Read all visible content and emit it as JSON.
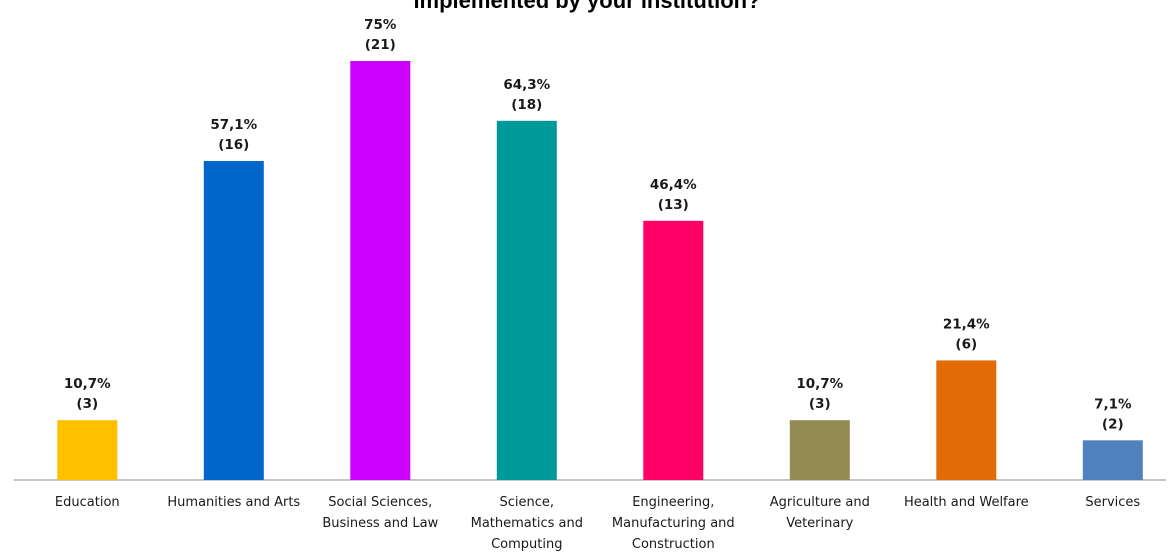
{
  "chart_data": {
    "type": "bar",
    "title": "implemented by your institution?",
    "xlabel": "",
    "ylabel": "",
    "ylim": [
      0,
      75
    ],
    "grid": false,
    "legend": "none",
    "categories": [
      "Education",
      "Humanities and Arts",
      "Social Sciences, Business and Law",
      "Science, Mathematics and Computing",
      "Engineering, Manufacturing and Construction",
      "Agriculture and Veterinary",
      "Health and Welfare",
      "Services"
    ],
    "category_lines": [
      [
        "Education"
      ],
      [
        "Humanities and Arts"
      ],
      [
        "Social Sciences,",
        "Business and Law"
      ],
      [
        "Science,",
        "Mathematics and",
        "Computing"
      ],
      [
        "Engineering,",
        "Manufacturing and",
        "Construction"
      ],
      [
        "Agriculture and",
        "Veterinary"
      ],
      [
        "Health and Welfare"
      ],
      [
        "Services"
      ]
    ],
    "values": [
      10.7,
      57.1,
      75,
      64.3,
      46.4,
      10.7,
      21.4,
      7.1
    ],
    "percent_labels": [
      "10,7%",
      "57,1%",
      "75%",
      "64,3%",
      "46,4%",
      "10,7%",
      "21,4%",
      "7,1%"
    ],
    "counts": [
      3,
      16,
      21,
      18,
      13,
      3,
      6,
      2
    ],
    "count_labels": [
      "(3)",
      "(16)",
      "(21)",
      "(18)",
      "(13)",
      "(3)",
      "(6)",
      "(2)"
    ],
    "colors": [
      "#FFC000",
      "#0066CC",
      "#CC00FF",
      "#009999",
      "#FF0066",
      "#948A54",
      "#E36C09",
      "#4F81BD"
    ]
  }
}
